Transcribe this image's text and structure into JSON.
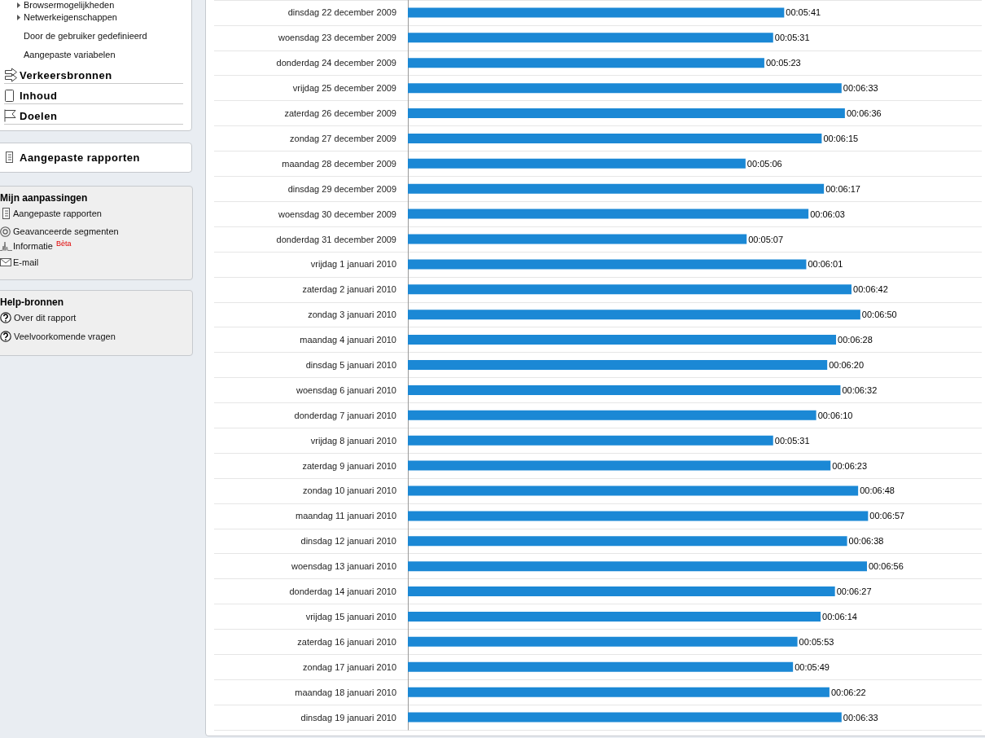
{
  "chart_data": [
    {
      "type": "other",
      "annotations": [
        "Browsermogelijkheden",
        "Netwerkeigenschappen",
        "Door de gebruiker gedefinieerd",
        "Aangepaste variabelen",
        "Verkeersbronnen",
        "Inhoud",
        "Doelen",
        "Aangepaste rapporten",
        "Mijn aanpassingen",
        "Aangepaste rapporten",
        "Geavanceerde segmenten",
        "Informatie",
        "Bèta",
        "E-mail",
        "Help-bronnen",
        "Over dit rapport",
        "Veelvoorkomende vragen"
      ]
    },
    {
      "type": "bar",
      "orientation": "horizontal",
      "color": "#1b88d5",
      "grid": "y",
      "tick_labels": "y",
      "xlim": [
        0,
        520
      ],
      "categories": [
        "dinsdag 22 december 2009",
        "woensdag 23 december 2009",
        "donderdag 24 december 2009",
        "vrijdag 25 december 2009",
        "zaterdag 26 december 2009",
        "zondag 27 december 2009",
        "maandag 28 december 2009",
        "dinsdag 29 december 2009",
        "woensdag 30 december 2009",
        "donderdag 31 december 2009",
        "vrijdag 1 januari 2010",
        "zaterdag 2 januari 2010",
        "zondag 3 januari 2010",
        "maandag 4 januari 2010",
        "dinsdag 5 januari 2010",
        "woensdag 6 januari 2010",
        "donderdag 7 januari 2010",
        "vrijdag 8 januari 2010",
        "zaterdag 9 januari 2010",
        "zondag 10 januari 2010",
        "maandag 11 januari 2010",
        "dinsdag 12 januari 2010",
        "woensdag 13 januari 2010",
        "donderdag 14 januari 2010",
        "vrijdag 15 januari 2010",
        "zaterdag 16 januari 2010",
        "zondag 17 januari 2010",
        "maandag 18 januari 2010",
        "dinsdag 19 januari 2010"
      ],
      "values": [
        341,
        331,
        323,
        393,
        396,
        375,
        306,
        377,
        363,
        307,
        361,
        402,
        410,
        388,
        380,
        392,
        370,
        331,
        383,
        408,
        417,
        398,
        416,
        387,
        374,
        353,
        349,
        382,
        393
      ],
      "value_labels": [
        "00:05:41",
        "00:05:31",
        "00:05:23",
        "00:06:33",
        "00:06:36",
        "00:06:15",
        "00:05:06",
        "00:06:17",
        "00:06:03",
        "00:05:07",
        "00:06:01",
        "00:06:42",
        "00:06:50",
        "00:06:28",
        "00:06:20",
        "00:06:32",
        "00:06:10",
        "00:05:31",
        "00:06:23",
        "00:06:48",
        "00:06:57",
        "00:06:38",
        "00:06:56",
        "00:06:27",
        "00:06:14",
        "00:05:53",
        "00:05:49",
        "00:06:22",
        "00:06:33"
      ]
    }
  ]
}
